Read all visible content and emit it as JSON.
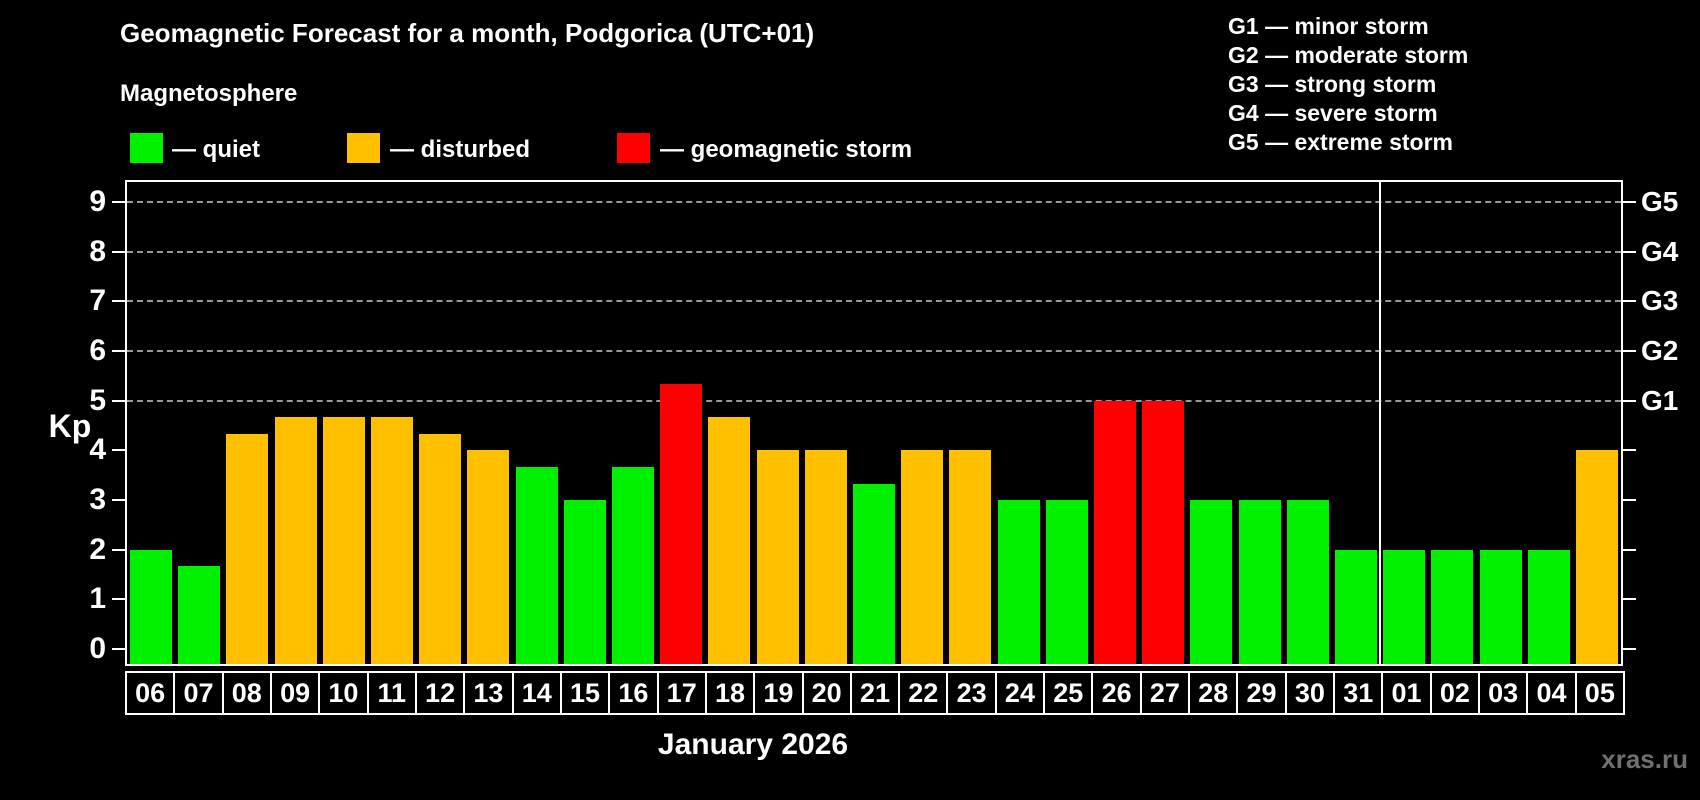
{
  "title": "Geomagnetic Forecast for a month, Podgorica (UTC+01)",
  "subtitle": "Magnetosphere",
  "legend": {
    "items": [
      {
        "key": "quiet",
        "label": "— quiet",
        "color": "#00f000"
      },
      {
        "key": "disturbed",
        "label": "— disturbed",
        "color": "#ffc000"
      },
      {
        "key": "storm",
        "label": "— geomagnetic storm",
        "color": "#ff0000"
      }
    ]
  },
  "g_legend": {
    "items": [
      "G1 — minor storm",
      "G2 — moderate storm",
      "G3 — strong storm",
      "G4 — severe storm",
      "G5 — extreme storm"
    ]
  },
  "watermark": "xras.ru",
  "chart_data": {
    "type": "bar",
    "title": "Geomagnetic Forecast for a month, Podgorica (UTC+01)",
    "xlabel": "January 2026",
    "ylabel": "Kp",
    "ylim": [
      -0.3,
      9.4
    ],
    "yticks": [
      0,
      1,
      2,
      3,
      4,
      5,
      6,
      7,
      8,
      9
    ],
    "gridlines_at": [
      5,
      6,
      7,
      8,
      9
    ],
    "grid": true,
    "right_axis_labels": [
      {
        "label": "G1",
        "kp": 5
      },
      {
        "label": "G2",
        "kp": 6
      },
      {
        "label": "G3",
        "kp": 7
      },
      {
        "label": "G4",
        "kp": 8
      },
      {
        "label": "G5",
        "kp": 9
      }
    ],
    "month_separator_after_index": 25,
    "categories": [
      "06",
      "07",
      "08",
      "09",
      "10",
      "11",
      "12",
      "13",
      "14",
      "15",
      "16",
      "17",
      "18",
      "19",
      "20",
      "21",
      "22",
      "23",
      "24",
      "25",
      "26",
      "27",
      "28",
      "29",
      "30",
      "31",
      "01",
      "02",
      "03",
      "04",
      "05"
    ],
    "values": [
      2.0,
      1.67,
      4.33,
      4.67,
      4.67,
      4.67,
      4.33,
      4.0,
      3.67,
      3.0,
      3.67,
      5.33,
      4.67,
      4.0,
      4.0,
      3.33,
      4.0,
      4.0,
      3.0,
      3.0,
      5.0,
      5.0,
      3.0,
      3.0,
      3.0,
      2.0,
      2.0,
      2.0,
      2.0,
      2.0,
      4.0
    ],
    "statuses": [
      "quiet",
      "quiet",
      "disturbed",
      "disturbed",
      "disturbed",
      "disturbed",
      "disturbed",
      "disturbed",
      "quiet",
      "quiet",
      "quiet",
      "storm",
      "disturbed",
      "disturbed",
      "disturbed",
      "quiet",
      "disturbed",
      "disturbed",
      "quiet",
      "quiet",
      "storm",
      "storm",
      "quiet",
      "quiet",
      "quiet",
      "quiet",
      "quiet",
      "quiet",
      "quiet",
      "quiet",
      "disturbed"
    ],
    "colors": {
      "quiet": "#00f000",
      "disturbed": "#ffc000",
      "storm": "#ff0000"
    }
  }
}
